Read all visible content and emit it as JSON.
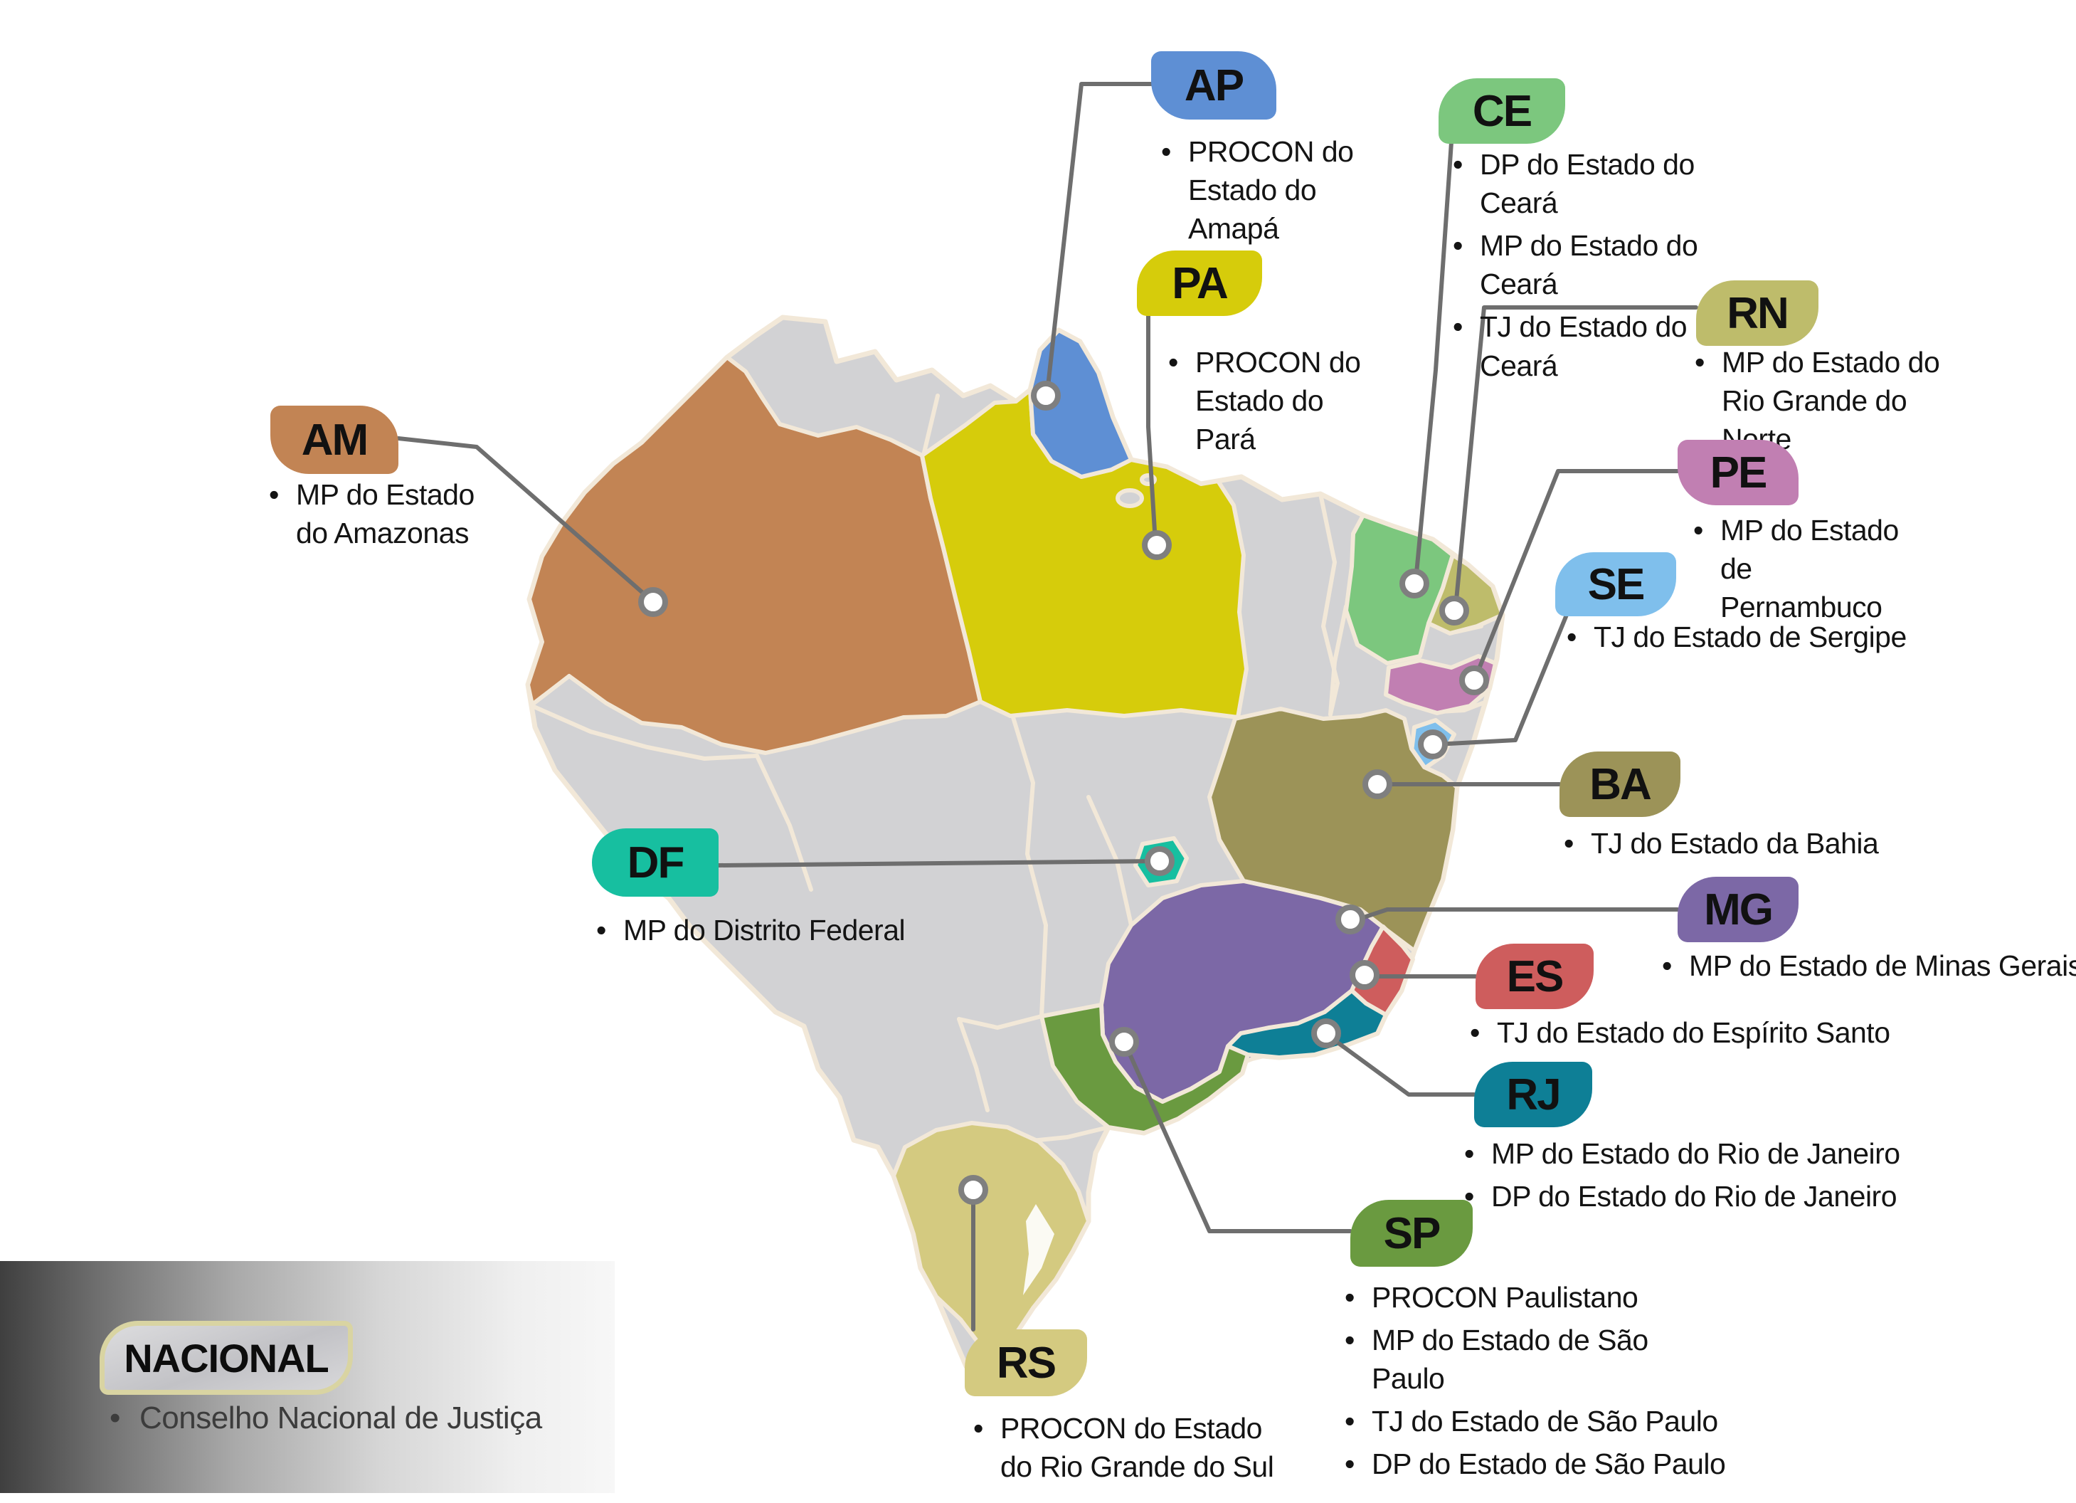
{
  "national": {
    "label": "NACIONAL",
    "items": [
      "Conselho Nacional de Justiça"
    ]
  },
  "map": {
    "base_color": "#d2d2d4",
    "border_color": "#f2e8d8",
    "connector_color": "#6e6e6e",
    "marker_ring_color": "#7f7f7f"
  },
  "states": [
    {
      "code": "AP",
      "color": "#5e8fd4",
      "items": [
        "PROCON do\nEstado do Amapá"
      ]
    },
    {
      "code": "CE",
      "color": "#7cc77e",
      "items": [
        "DP do Estado do Ceará",
        "MP do Estado do Ceará",
        "TJ do Estado do Ceará"
      ]
    },
    {
      "code": "PA",
      "color": "#d6cc0b",
      "items": [
        "PROCON do\nEstado do Pará"
      ]
    },
    {
      "code": "RN",
      "color": "#bebc6b",
      "items": [
        "MP do Estado do\nRio Grande do Norte"
      ]
    },
    {
      "code": "AM",
      "color": "#c28454",
      "items": [
        "MP do Estado\ndo Amazonas"
      ]
    },
    {
      "code": "PE",
      "color": "#c17fb2",
      "items": [
        "MP do Estado\nde Pernambuco"
      ]
    },
    {
      "code": "SE",
      "color": "#7fbfec",
      "items": [
        "TJ  do Estado de Sergipe"
      ]
    },
    {
      "code": "BA",
      "color": "#9c9358",
      "items": [
        "TJ do Estado da Bahia"
      ]
    },
    {
      "code": "DF",
      "color": "#17bfa0",
      "items": [
        "MP do Distrito Federal"
      ]
    },
    {
      "code": "MG",
      "color": "#7c68a6",
      "items": [
        "MP do Estado de Minas Gerais"
      ]
    },
    {
      "code": "ES",
      "color": "#ce5d5d",
      "items": [
        "TJ do Estado do Espírito Santo"
      ]
    },
    {
      "code": "RJ",
      "color": "#0e7f96",
      "items": [
        "MP do Estado do Rio de Janeiro",
        "DP do Estado do Rio de Janeiro"
      ]
    },
    {
      "code": "SP",
      "color": "#6a9a40",
      "items": [
        "PROCON Paulistano",
        "MP do Estado de São Paulo",
        "TJ do Estado de São Paulo",
        "DP do Estado de São Paulo"
      ]
    },
    {
      "code": "RS",
      "color": "#d4ca80",
      "items": [
        "PROCON do Estado\ndo Rio Grande do Sul"
      ]
    }
  ]
}
